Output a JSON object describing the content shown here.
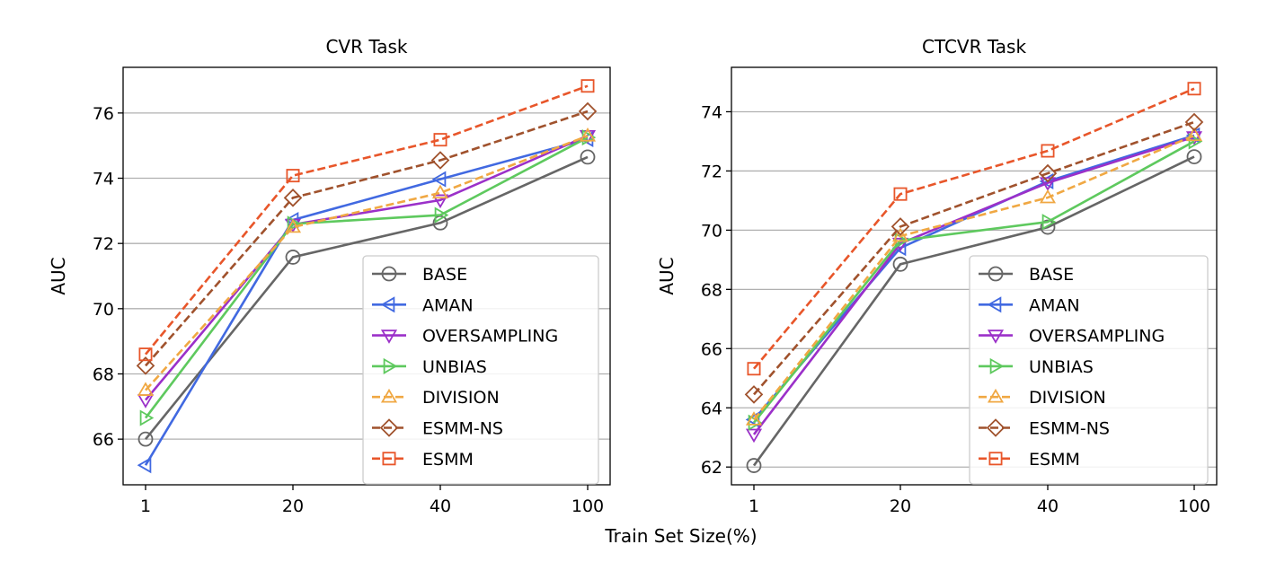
{
  "figure": {
    "shared_xlabel": "Train Set Size(%)"
  },
  "chart_data": [
    {
      "type": "line",
      "title": "CVR Task",
      "xlabel": "",
      "ylabel": "AUC",
      "categories": [
        "1",
        "20",
        "40",
        "100"
      ],
      "ylim": [
        64.6,
        77.4
      ],
      "yticks": [
        66,
        68,
        70,
        72,
        74,
        76
      ],
      "grid": "horizontal",
      "legend_position": "lower-right",
      "series": [
        {
          "name": "BASE",
          "color": "#666666",
          "marker": "circle",
          "dash": "solid",
          "values": [
            66.0,
            71.58,
            72.63,
            74.65
          ]
        },
        {
          "name": "AMAN",
          "color": "#4169e1",
          "marker": "triangle-left",
          "dash": "solid",
          "values": [
            65.2,
            72.72,
            73.97,
            75.2
          ]
        },
        {
          "name": "OVERSAMPLING",
          "color": "#9b30c9",
          "marker": "triangle-down",
          "dash": "solid",
          "values": [
            67.2,
            72.58,
            73.33,
            75.3
          ]
        },
        {
          "name": "UNBIAS",
          "color": "#5ec95e",
          "marker": "triangle-right",
          "dash": "solid",
          "values": [
            66.65,
            72.6,
            72.87,
            75.25
          ]
        },
        {
          "name": "DIVISION",
          "color": "#f0a843",
          "marker": "triangle-up",
          "dash": "dashed",
          "values": [
            67.5,
            72.5,
            73.55,
            75.3
          ]
        },
        {
          "name": "ESMM-NS",
          "color": "#a0522d",
          "marker": "diamond",
          "dash": "dashed",
          "values": [
            68.25,
            73.4,
            74.55,
            76.05
          ]
        },
        {
          "name": "ESMM",
          "color": "#e8562a",
          "marker": "square",
          "dash": "dashed",
          "values": [
            68.6,
            74.08,
            75.18,
            76.83
          ]
        }
      ]
    },
    {
      "type": "line",
      "title": "CTCVR Task",
      "xlabel": "",
      "ylabel": "AUC",
      "categories": [
        "1",
        "20",
        "40",
        "100"
      ],
      "ylim": [
        61.4,
        75.5
      ],
      "yticks": [
        62,
        64,
        66,
        68,
        70,
        72,
        74
      ],
      "grid": "horizontal",
      "legend_position": "lower-right",
      "series": [
        {
          "name": "BASE",
          "color": "#666666",
          "marker": "circle",
          "dash": "solid",
          "values": [
            62.05,
            68.85,
            70.1,
            72.48
          ]
        },
        {
          "name": "AMAN",
          "color": "#4169e1",
          "marker": "triangle-left",
          "dash": "solid",
          "values": [
            63.6,
            69.4,
            71.65,
            73.2
          ]
        },
        {
          "name": "OVERSAMPLING",
          "color": "#9b30c9",
          "marker": "triangle-down",
          "dash": "solid",
          "values": [
            63.1,
            69.55,
            71.6,
            73.15
          ]
        },
        {
          "name": "UNBIAS",
          "color": "#5ec95e",
          "marker": "triangle-right",
          "dash": "solid",
          "values": [
            63.5,
            69.65,
            70.28,
            73.0
          ]
        },
        {
          "name": "DIVISION",
          "color": "#f0a843",
          "marker": "triangle-up",
          "dash": "dashed",
          "values": [
            63.6,
            69.8,
            71.1,
            73.2
          ]
        },
        {
          "name": "ESMM-NS",
          "color": "#a0522d",
          "marker": "diamond",
          "dash": "dashed",
          "values": [
            64.45,
            70.12,
            71.92,
            73.65
          ]
        },
        {
          "name": "ESMM",
          "color": "#e8562a",
          "marker": "square",
          "dash": "dashed",
          "values": [
            65.32,
            71.22,
            72.68,
            74.78
          ]
        }
      ]
    }
  ]
}
